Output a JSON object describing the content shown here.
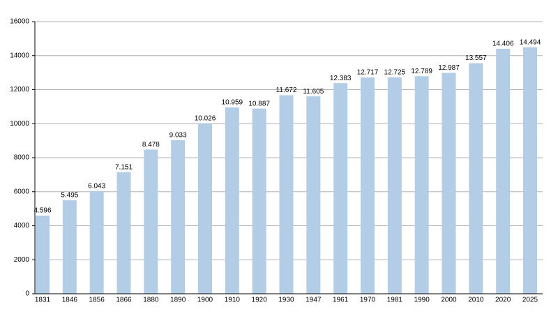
{
  "chart_data": {
    "type": "bar",
    "categories": [
      "1831",
      "1846",
      "1856",
      "1866",
      "1880",
      "1890",
      "1900",
      "1910",
      "1920",
      "1930",
      "1947",
      "1961",
      "1970",
      "1981",
      "1990",
      "2000",
      "2010",
      "2020",
      "2025"
    ],
    "values": [
      4596,
      5495,
      6043,
      7151,
      8478,
      9033,
      10026,
      10959,
      10887,
      11672,
      11605,
      12383,
      12717,
      12725,
      12789,
      12987,
      13557,
      14406,
      14494
    ],
    "value_labels": [
      "4.596",
      "5.495",
      "6.043",
      "7.151",
      "8.478",
      "9.033",
      "10.026",
      "10.959",
      "10.887",
      "11.672",
      "11.605",
      "12.383",
      "12.717",
      "12.725",
      "12.789",
      "12.987",
      "13.557",
      "14.406",
      "14.494"
    ],
    "color": "#b3cde6",
    "ylim": [
      0,
      16000
    ],
    "yticks": [
      0,
      2000,
      4000,
      6000,
      8000,
      10000,
      12000,
      14000,
      16000
    ],
    "grid": true
  }
}
